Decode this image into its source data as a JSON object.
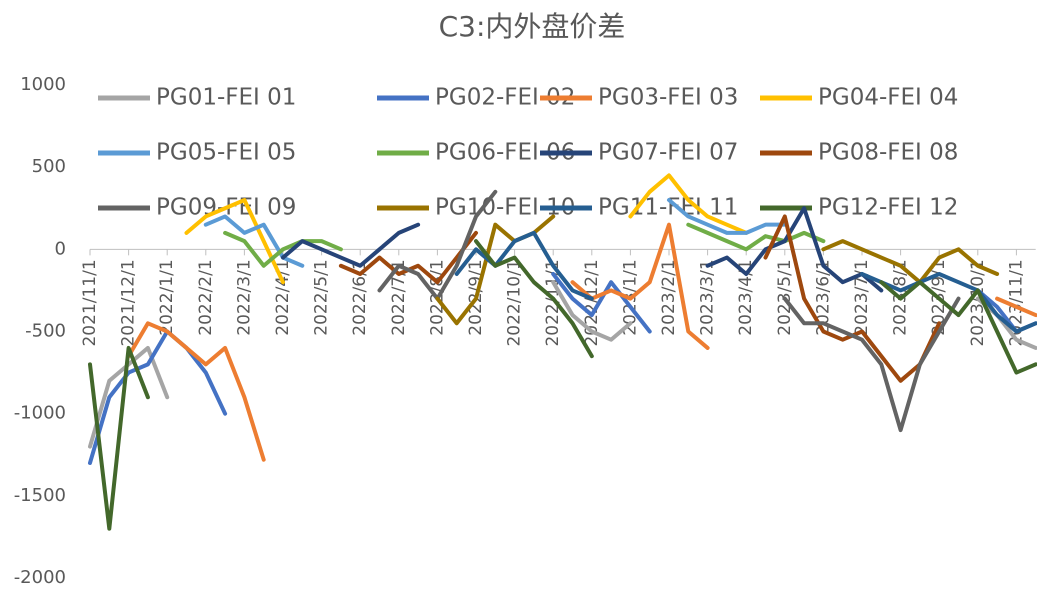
{
  "chart_data": {
    "type": "line",
    "title": "C3:内外盘价差",
    "categories": [
      "2021/11/1",
      null,
      "2021/12/1",
      null,
      "2022/1/1",
      null,
      "2022/2/1",
      null,
      "2022/3/1",
      null,
      "2022/4/1",
      null,
      "2022/5/1",
      null,
      "2022/6/1",
      null,
      "2022/7/1",
      null,
      "2022/8/1",
      null,
      "2022/9/1",
      null,
      "2022/10/1",
      null,
      "2022/11/1",
      null,
      "2022/12/1",
      null,
      "2023/1/1",
      null,
      "2023/2/1",
      null,
      "2023/3/1",
      null,
      "2023/4/1",
      null,
      "2023/5/1",
      null,
      "2023/6/1",
      null,
      "2023/7/1",
      null,
      "2023/8/1",
      null,
      "2023/9/1",
      null,
      "2023/10/1",
      null,
      "2023/11/1",
      null
    ],
    "ylim": [
      -2000,
      1000
    ],
    "yticks": [
      -2000,
      -1500,
      -1000,
      -500,
      0,
      500,
      1000
    ],
    "grid": false,
    "legend": "top",
    "series": [
      {
        "name": "PG01-FEI 01",
        "color": "#a5a5a5",
        "values": [
          -1200,
          -800,
          -700,
          -600,
          -900,
          null,
          null,
          null,
          null,
          null,
          null,
          null,
          null,
          null,
          null,
          null,
          null,
          null,
          null,
          null,
          null,
          null,
          null,
          null,
          -200,
          -400,
          -500,
          -550,
          -450,
          null,
          null,
          null,
          null,
          null,
          null,
          null,
          null,
          null,
          null,
          null,
          null,
          null,
          null,
          null,
          null,
          null,
          -300,
          -400,
          -550,
          -600
        ]
      },
      {
        "name": "PG02-FEI 02",
        "color": "#4472c4",
        "values": [
          -1300,
          -900,
          -750,
          -700,
          -500,
          -600,
          -750,
          -1000,
          null,
          null,
          null,
          null,
          null,
          null,
          null,
          null,
          null,
          null,
          null,
          null,
          null,
          null,
          null,
          null,
          -150,
          -300,
          -400,
          -200,
          -350,
          -500,
          null,
          null,
          null,
          null,
          null,
          null,
          null,
          null,
          null,
          null,
          null,
          null,
          null,
          null,
          null,
          null,
          -250,
          -350,
          -500,
          -450
        ]
      },
      {
        "name": "PG03-FEI 03",
        "color": "#ed7d31",
        "values": [
          null,
          null,
          -650,
          -450,
          -500,
          -600,
          -700,
          -600,
          -900,
          -1280,
          null,
          null,
          null,
          null,
          null,
          null,
          null,
          null,
          null,
          null,
          null,
          null,
          null,
          null,
          null,
          -200,
          -300,
          -250,
          -300,
          -200,
          150,
          -500,
          -600,
          null,
          null,
          null,
          null,
          null,
          null,
          null,
          null,
          null,
          null,
          null,
          null,
          null,
          null,
          -300,
          -350,
          -400
        ]
      },
      {
        "name": "PG04-FEI 04",
        "color": "#ffc000",
        "values": [
          null,
          null,
          null,
          null,
          null,
          100,
          200,
          250,
          300,
          50,
          -200,
          null,
          null,
          null,
          null,
          null,
          null,
          null,
          null,
          null,
          null,
          null,
          null,
          null,
          null,
          null,
          null,
          null,
          200,
          350,
          450,
          300,
          200,
          150,
          100,
          null,
          null,
          null,
          null,
          null,
          null,
          null,
          null,
          null,
          null,
          null,
          null,
          null,
          null,
          null
        ]
      },
      {
        "name": "PG05-FEI 05",
        "color": "#5b9bd5",
        "values": [
          null,
          null,
          null,
          null,
          null,
          null,
          150,
          200,
          100,
          150,
          -50,
          -100,
          null,
          null,
          null,
          null,
          null,
          null,
          null,
          null,
          null,
          null,
          null,
          null,
          null,
          null,
          null,
          null,
          null,
          null,
          300,
          200,
          150,
          100,
          100,
          150,
          150,
          null,
          null,
          null,
          null,
          null,
          null,
          null,
          null,
          null,
          null,
          null,
          null,
          null
        ]
      },
      {
        "name": "PG06-FEI 06",
        "color": "#70ad47",
        "values": [
          null,
          null,
          null,
          null,
          null,
          null,
          null,
          100,
          50,
          -100,
          0,
          50,
          50,
          0,
          null,
          null,
          null,
          null,
          null,
          null,
          null,
          null,
          null,
          null,
          null,
          null,
          null,
          null,
          null,
          null,
          null,
          150,
          100,
          50,
          0,
          80,
          50,
          100,
          50,
          null,
          null,
          null,
          null,
          null,
          null,
          null,
          null,
          null,
          null,
          null
        ]
      },
      {
        "name": "PG07-FEI 07",
        "color": "#264478",
        "values": [
          null,
          null,
          null,
          null,
          null,
          null,
          null,
          null,
          null,
          null,
          -50,
          50,
          0,
          -50,
          -100,
          0,
          100,
          150,
          null,
          null,
          null,
          null,
          null,
          null,
          null,
          null,
          null,
          null,
          null,
          null,
          null,
          null,
          -100,
          -50,
          -150,
          0,
          50,
          250,
          -100,
          -200,
          -150,
          -250,
          null,
          null,
          null,
          null,
          null,
          null,
          null,
          null
        ]
      },
      {
        "name": "PG08-FEI 08",
        "color": "#9e480e",
        "values": [
          null,
          null,
          null,
          null,
          null,
          null,
          null,
          null,
          null,
          null,
          null,
          null,
          null,
          -100,
          -150,
          -50,
          -150,
          -100,
          -200,
          -50,
          100,
          null,
          null,
          null,
          null,
          null,
          null,
          null,
          null,
          null,
          null,
          null,
          null,
          null,
          null,
          -50,
          200,
          -300,
          -500,
          -550,
          -500,
          -650,
          -800,
          -700,
          -450,
          null,
          null,
          null,
          null,
          null
        ]
      },
      {
        "name": "PG09-FEI 09",
        "color": "#636363",
        "values": [
          null,
          null,
          null,
          null,
          null,
          null,
          null,
          null,
          null,
          null,
          null,
          null,
          null,
          null,
          null,
          -250,
          -100,
          -150,
          -300,
          -100,
          200,
          350,
          null,
          null,
          null,
          null,
          null,
          null,
          null,
          null,
          null,
          null,
          null,
          null,
          null,
          null,
          -300,
          -450,
          -450,
          -500,
          -550,
          -700,
          -1100,
          -700,
          -500,
          -300,
          null,
          null,
          null,
          null
        ]
      },
      {
        "name": "PG10-FEI 10",
        "color": "#997300",
        "values": [
          null,
          null,
          null,
          null,
          null,
          null,
          null,
          null,
          null,
          null,
          null,
          null,
          null,
          null,
          null,
          null,
          null,
          null,
          -300,
          -450,
          -300,
          150,
          50,
          100,
          200,
          null,
          null,
          null,
          null,
          null,
          null,
          null,
          null,
          null,
          null,
          null,
          null,
          null,
          0,
          50,
          0,
          -50,
          -100,
          -200,
          -50,
          0,
          -100,
          -150,
          null,
          null
        ]
      },
      {
        "name": "PG11-FEI 11",
        "color": "#255e91",
        "values": [
          null,
          null,
          null,
          null,
          null,
          null,
          null,
          null,
          null,
          null,
          null,
          null,
          null,
          null,
          null,
          null,
          null,
          null,
          null,
          -150,
          0,
          -100,
          50,
          100,
          -100,
          -250,
          -300,
          null,
          null,
          null,
          null,
          null,
          null,
          null,
          null,
          null,
          null,
          null,
          null,
          null,
          -150,
          -200,
          -250,
          -200,
          -150,
          -200,
          -250,
          -400,
          -500,
          -450
        ]
      },
      {
        "name": "PG12-FEI 12",
        "color": "#43682b",
        "values": [
          -700,
          -1700,
          -600,
          -900,
          null,
          null,
          null,
          null,
          null,
          null,
          null,
          null,
          null,
          null,
          null,
          null,
          null,
          null,
          null,
          null,
          50,
          -100,
          -50,
          -200,
          -300,
          -450,
          -650,
          null,
          null,
          null,
          null,
          null,
          null,
          null,
          null,
          null,
          null,
          null,
          null,
          null,
          null,
          -200,
          -300,
          -200,
          -300,
          -400,
          -250,
          -500,
          -750,
          -700
        ]
      }
    ]
  }
}
